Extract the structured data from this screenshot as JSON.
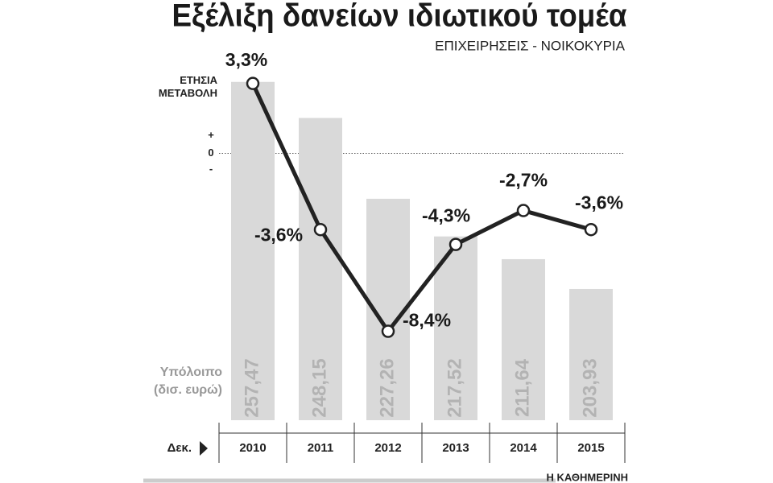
{
  "chart_data": {
    "type": "bar",
    "title": "Εξέλιξη δανείων ιδιωτικού τομέα",
    "subtitle": "ΕΠΙΧΕΙΡΗΣΕΙΣ - ΝΟΙΚΟΚΥΡΙΑ",
    "x_label": "Δεκ.",
    "source": "Η ΚΑΘΗΜΕΡΙΝΗ",
    "categories": [
      "2010",
      "2011",
      "2012",
      "2013",
      "2014",
      "2015"
    ],
    "series": [
      {
        "name": "Υπόλοιπο (δισ. ευρώ)",
        "type": "bar",
        "color": "#d9d9d9",
        "values": [
          257.47,
          248.15,
          227.26,
          217.52,
          211.64,
          203.93
        ],
        "value_labels": [
          "257,47",
          "248,15",
          "227,26",
          "217,52",
          "211,64",
          "203,93"
        ]
      },
      {
        "name": "ΕΤΗΣΙΑ ΜΕΤΑΒΟΛΗ",
        "type": "line",
        "axis": "y2",
        "color": "#222222",
        "values": [
          3.3,
          -3.6,
          -8.4,
          -4.3,
          -2.7,
          -3.6
        ],
        "value_labels": [
          "3,3%",
          "-3,6%",
          "-8,4%",
          "-4,3%",
          "-2,7%",
          "-3,6%"
        ]
      }
    ],
    "ylim": [
      170,
      262
    ],
    "y2lim": [
      -12.6,
      4.2
    ],
    "y2ticks": [
      0
    ],
    "y2_sign_labels": [
      "+",
      "-"
    ]
  }
}
